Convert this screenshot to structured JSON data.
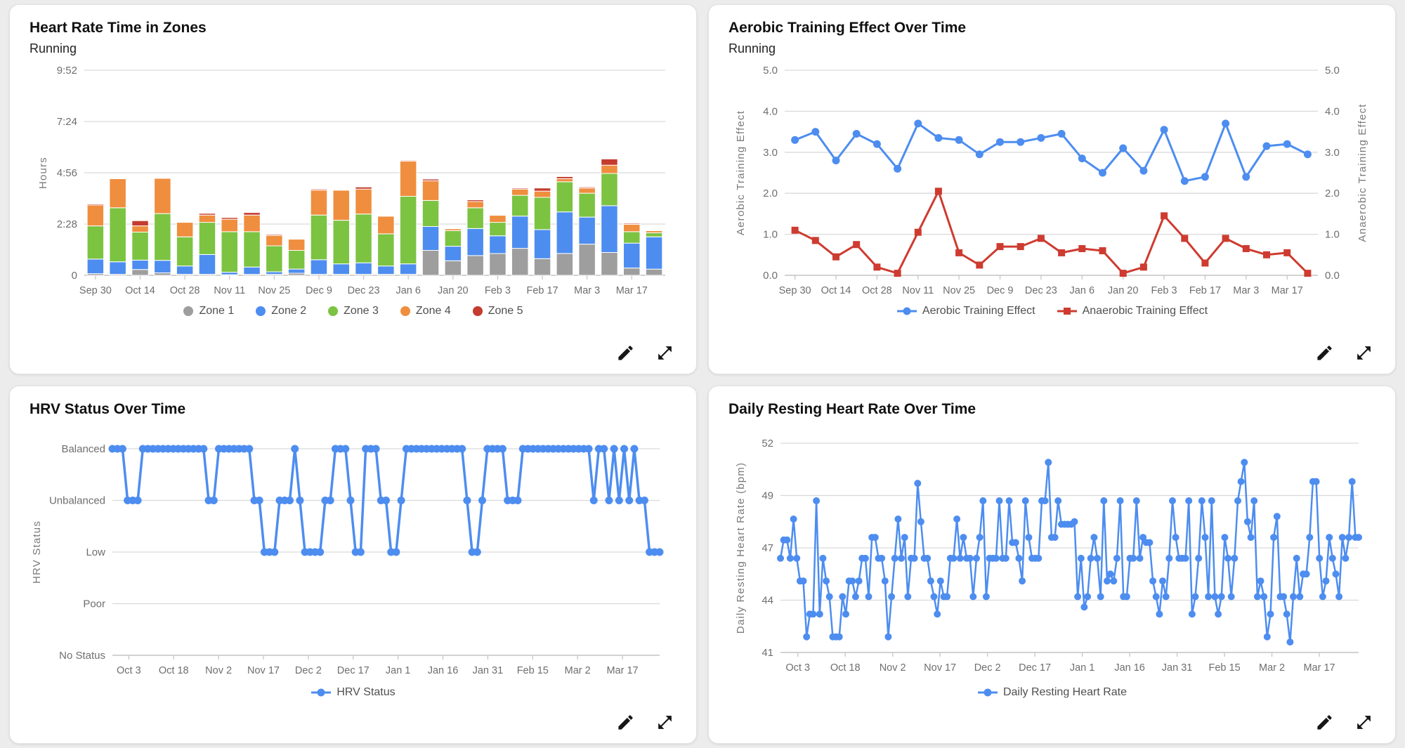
{
  "page": {
    "background": "#ECECEC"
  },
  "theme": {
    "grid_color": "#D9D9D9",
    "axis_color": "#C6C6C6",
    "tick_text_color": "#6E6E6E",
    "axis_title_color": "#7A7A7A",
    "legend_text_color": "#4F4F4F",
    "card_background": "#FFFFFF",
    "icon_color": "#161616",
    "blue": "#4D8DF0",
    "red": "#CE3B30"
  },
  "actions": {
    "edit_icon": "pencil-icon",
    "expand_icon": "expand-icon"
  },
  "chart_data": [
    {
      "type": "stacked-bar",
      "title": "Heart Rate Time in Zones",
      "subtitle": "Running",
      "y_title": "Hours",
      "y_ticks": [
        {
          "v": 0,
          "label": "0"
        },
        {
          "v": 2.467,
          "label": "2:28"
        },
        {
          "v": 4.933,
          "label": "4:56"
        },
        {
          "v": 7.4,
          "label": "7:24"
        },
        {
          "v": 9.867,
          "label": "9:52"
        }
      ],
      "x_labels": [
        "Sep 30",
        "Oct 14",
        "Oct 28",
        "Nov 11",
        "Nov 25",
        "Dec 9",
        "Dec 23",
        "Jan 6",
        "Jan 20",
        "Feb 3",
        "Feb 17",
        "Mar 3",
        "Mar 17"
      ],
      "series": [
        {
          "name": "Zone 1",
          "color": "#9E9E9E",
          "values": [
            0.08,
            0.05,
            0.28,
            0.12,
            0.05,
            0.05,
            0.03,
            0.05,
            0.05,
            0.1,
            0.05,
            0.05,
            0.05,
            0.05,
            0.05,
            1.2,
            0.7,
            0.95,
            1.05,
            1.3,
            0.8,
            1.05,
            1.5,
            1.1,
            0.35,
            0.3
          ]
        },
        {
          "name": "Zone 2",
          "color": "#4D8DF0",
          "values": [
            0.7,
            0.6,
            0.45,
            0.6,
            0.4,
            0.95,
            0.12,
            0.35,
            0.12,
            0.2,
            0.7,
            0.5,
            0.55,
            0.4,
            0.5,
            1.15,
            0.7,
            1.3,
            0.85,
            1.55,
            1.4,
            2.0,
            1.3,
            2.25,
            1.2,
            1.55
          ]
        },
        {
          "name": "Zone 3",
          "color": "#7CC342",
          "values": [
            1.6,
            2.6,
            1.35,
            2.25,
            1.4,
            1.55,
            1.95,
            1.7,
            1.25,
            0.9,
            2.15,
            2.1,
            2.35,
            1.55,
            3.25,
            1.25,
            0.75,
            1.0,
            0.65,
            1.0,
            1.55,
            1.45,
            1.15,
            1.55,
            0.55,
            0.2
          ]
        },
        {
          "name": "Zone 4",
          "color": "#EF8E3E",
          "values": [
            1.0,
            1.4,
            0.3,
            1.7,
            0.7,
            0.35,
            0.6,
            0.8,
            0.5,
            0.55,
            1.2,
            1.45,
            1.2,
            0.85,
            1.7,
            0.95,
            0.1,
            0.3,
            0.35,
            0.3,
            0.3,
            0.15,
            0.25,
            0.4,
            0.35,
            0.1
          ]
        },
        {
          "name": "Zone 5",
          "color": "#C43B2F",
          "values": [
            0.05,
            0.03,
            0.25,
            0.03,
            0.03,
            0.08,
            0.08,
            0.12,
            0.05,
            0.02,
            0.05,
            0.03,
            0.1,
            0.03,
            0.04,
            0.08,
            0.02,
            0.08,
            0.02,
            0.05,
            0.15,
            0.1,
            0.05,
            0.3,
            0.05,
            0.03
          ]
        }
      ],
      "legend_items": [
        {
          "label": "Zone 1",
          "color": "#9E9E9E",
          "marker": "dot"
        },
        {
          "label": "Zone 2",
          "color": "#4D8DF0",
          "marker": "dot"
        },
        {
          "label": "Zone 3",
          "color": "#7CC342",
          "marker": "dot"
        },
        {
          "label": "Zone 4",
          "color": "#EF8E3E",
          "marker": "dot"
        },
        {
          "label": "Zone 5",
          "color": "#C43B2F",
          "marker": "dot"
        }
      ]
    },
    {
      "type": "line",
      "title": "Aerobic Training Effect Over Time",
      "subtitle": "Running",
      "y_title": "Aerobic Training Effect",
      "right_axis": true,
      "right_axis_title": "Anaerobic Training Effect",
      "y_ticks": [
        {
          "v": 0,
          "label": "0.0"
        },
        {
          "v": 1,
          "label": "1.0"
        },
        {
          "v": 2,
          "label": "2.0"
        },
        {
          "v": 3,
          "label": "3.0"
        },
        {
          "v": 4,
          "label": "4.0"
        },
        {
          "v": 5,
          "label": "5.0"
        }
      ],
      "x_labels": [
        "Sep 30",
        "Oct 14",
        "Oct 28",
        "Nov 11",
        "Nov 25",
        "Dec 9",
        "Dec 23",
        "Jan 6",
        "Jan 20",
        "Feb 3",
        "Feb 17",
        "Mar 3",
        "Mar 17"
      ],
      "series": [
        {
          "name": "Aerobic Training Effect",
          "color": "#4D8DF0",
          "marker": "circle",
          "values": [
            3.3,
            3.5,
            2.8,
            3.45,
            3.2,
            2.6,
            3.7,
            3.35,
            3.3,
            2.95,
            3.25,
            3.25,
            3.35,
            3.45,
            2.85,
            2.5,
            3.1,
            2.55,
            3.55,
            2.3,
            2.4,
            3.7,
            2.4,
            3.15,
            3.2,
            2.95
          ]
        },
        {
          "name": "Anaerobic Training Effect",
          "color": "#CE3B30",
          "marker": "square",
          "values": [
            1.1,
            0.85,
            0.45,
            0.75,
            0.2,
            0.05,
            1.05,
            2.05,
            0.55,
            0.25,
            0.7,
            0.7,
            0.9,
            0.55,
            0.65,
            0.6,
            0.05,
            0.2,
            1.45,
            0.9,
            0.3,
            0.9,
            0.65,
            0.5,
            0.55,
            0.05
          ]
        }
      ],
      "legend_items": [
        {
          "label": "Aerobic Training Effect",
          "color": "#4D8DF0",
          "marker": "line-circle"
        },
        {
          "label": "Anaerobic Training Effect",
          "color": "#CE3B30",
          "marker": "line-square"
        }
      ]
    },
    {
      "type": "category-line",
      "title": "HRV Status Over Time",
      "y_title": "HRV Status",
      "categories": [
        "No Status",
        "Poor",
        "Low",
        "Unbalanced",
        "Balanced"
      ],
      "x_labels": [
        "Oct 3",
        "Oct 18",
        "Nov 2",
        "Nov 17",
        "Dec 2",
        "Dec 17",
        "Jan 1",
        "Jan 16",
        "Jan 31",
        "Feb 15",
        "Mar 2",
        "Mar 17"
      ],
      "spread": true,
      "series": [
        {
          "name": "HRV Status",
          "color": "#4D8DF0",
          "marker": "circle",
          "values": [
            4,
            4,
            4,
            3,
            3,
            3,
            4,
            4,
            4,
            4,
            4,
            4,
            4,
            4,
            4,
            4,
            4,
            4,
            4,
            3,
            3,
            4,
            4,
            4,
            4,
            4,
            4,
            4,
            3,
            3,
            2,
            2,
            2,
            3,
            3,
            3,
            4,
            3,
            2,
            2,
            2,
            2,
            3,
            3,
            4,
            4,
            4,
            3,
            2,
            2,
            4,
            4,
            4,
            3,
            3,
            2,
            2,
            3,
            4,
            4,
            4,
            4,
            4,
            4,
            4,
            4,
            4,
            4,
            4,
            4,
            3,
            2,
            2,
            3,
            4,
            4,
            4,
            4,
            3,
            3,
            3,
            4,
            4,
            4,
            4,
            4,
            4,
            4,
            4,
            4,
            4,
            4,
            4,
            4,
            4,
            3,
            4,
            4,
            3,
            4,
            3,
            4,
            3,
            4,
            3,
            3,
            2,
            2,
            2
          ]
        }
      ],
      "legend_items": [
        {
          "label": "HRV Status",
          "color": "#4D8DF0",
          "marker": "line-circle"
        }
      ]
    },
    {
      "type": "line",
      "title": "Daily Resting Heart Rate Over Time",
      "y_title": "Daily Resting Heart Rate (bpm)",
      "even_ticks": true,
      "y_ticks": [
        {
          "v": 41,
          "label": "41"
        },
        {
          "v": 44,
          "label": "44"
        },
        {
          "v": 47,
          "label": "47"
        },
        {
          "v": 49,
          "label": "49"
        },
        {
          "v": 52,
          "label": "52"
        }
      ],
      "x_labels": [
        "Oct 3",
        "Oct 18",
        "Nov 2",
        "Nov 17",
        "Dec 2",
        "Dec 17",
        "Jan 1",
        "Jan 16",
        "Jan 31",
        "Feb 15",
        "Mar 2",
        "Mar 17"
      ],
      "spread": true,
      "series": [
        {
          "name": "Daily Resting Heart Rate",
          "color": "#4D8DF0",
          "marker": "circle",
          "values": [
            46.4,
            47.3,
            47.3,
            46.4,
            48.1,
            46.4,
            45.1,
            45.1,
            41.9,
            43.2,
            43.2,
            48.8,
            43.2,
            46.4,
            45.1,
            44.2,
            41.9,
            41.9,
            41.9,
            44.2,
            43.2,
            45.1,
            45.1,
            44.2,
            45.1,
            46.4,
            46.4,
            44.2,
            47.4,
            47.4,
            46.4,
            46.4,
            45.1,
            41.9,
            44.2,
            46.4,
            48.1,
            46.4,
            47.4,
            44.2,
            46.4,
            46.4,
            49.7,
            48.0,
            46.4,
            46.4,
            45.1,
            44.2,
            43.2,
            45.1,
            44.2,
            44.2,
            46.4,
            46.4,
            48.1,
            46.4,
            47.4,
            46.4,
            46.4,
            44.2,
            46.4,
            47.4,
            48.8,
            44.2,
            46.4,
            46.4,
            46.4,
            48.8,
            46.4,
            46.4,
            48.8,
            47.2,
            47.2,
            46.4,
            45.1,
            48.8,
            47.4,
            46.4,
            46.4,
            46.4,
            48.8,
            48.8,
            50.9,
            47.4,
            47.4,
            48.8,
            47.9,
            47.9,
            47.9,
            47.9,
            48.0,
            44.2,
            46.4,
            43.6,
            44.2,
            46.4,
            47.4,
            46.4,
            44.2,
            48.8,
            45.1,
            45.5,
            45.1,
            46.4,
            48.8,
            44.2,
            44.2,
            46.4,
            46.4,
            48.8,
            46.4,
            47.4,
            47.2,
            47.2,
            45.1,
            44.2,
            43.2,
            45.1,
            44.2,
            46.4,
            48.8,
            47.4,
            46.4,
            46.4,
            46.4,
            48.8,
            43.2,
            44.2,
            46.4,
            48.8,
            47.4,
            44.2,
            48.8,
            44.2,
            43.2,
            44.2,
            47.4,
            46.4,
            44.2,
            46.4,
            48.8,
            49.8,
            50.9,
            48.0,
            47.4,
            48.8,
            44.2,
            45.1,
            44.2,
            41.9,
            43.2,
            47.4,
            48.2,
            44.2,
            44.2,
            43.2,
            41.6,
            44.2,
            46.4,
            44.2,
            45.5,
            45.5,
            47.4,
            49.8,
            49.8,
            46.4,
            44.2,
            45.1,
            47.4,
            46.4,
            45.5,
            44.2,
            47.4,
            46.4,
            47.4,
            49.8,
            47.4,
            47.4
          ]
        }
      ],
      "legend_items": [
        {
          "label": "Daily Resting Heart Rate",
          "color": "#4D8DF0",
          "marker": "line-circle"
        }
      ]
    }
  ]
}
